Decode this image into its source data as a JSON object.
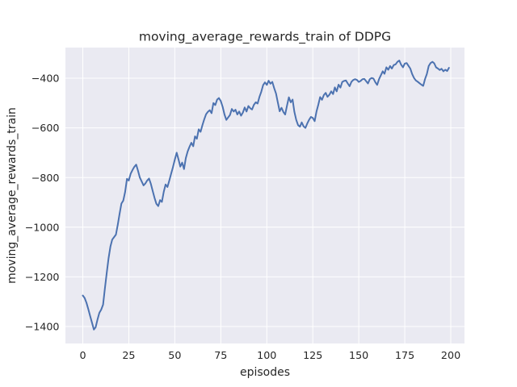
{
  "chart_data": {
    "type": "line",
    "title": "moving_average_rewards_train of DDPG",
    "xlabel": "episodes",
    "ylabel": "moving_average_rewards_train",
    "x_ticks": [
      0,
      25,
      50,
      75,
      100,
      125,
      150,
      175,
      200
    ],
    "y_ticks": [
      -400,
      -600,
      -800,
      -1000,
      -1200,
      -1400
    ],
    "xlim": [
      -9.44,
      207.45
    ],
    "ylim": [
      -1468.3,
      -276.6
    ],
    "grid": true,
    "legend": "none",
    "styles": {
      "figure_bg": "#ffffff",
      "plot_bg": "#eaeaf2",
      "grid_color": "#ffffff",
      "line_color": "#4c72b0",
      "text_color": "#262626",
      "line_width": 2
    },
    "series": [
      {
        "name": "moving_average_rewards_train",
        "x": {
          "type": "index",
          "start": 0,
          "step": 1
        },
        "y": [
          -1275,
          -1285,
          -1305,
          -1330,
          -1358,
          -1385,
          -1412,
          -1403,
          -1372,
          -1345,
          -1332,
          -1312,
          -1248,
          -1185,
          -1125,
          -1078,
          -1050,
          -1040,
          -1030,
          -990,
          -945,
          -905,
          -893,
          -858,
          -805,
          -812,
          -785,
          -770,
          -757,
          -748,
          -772,
          -800,
          -816,
          -832,
          -824,
          -812,
          -804,
          -826,
          -855,
          -882,
          -906,
          -915,
          -891,
          -898,
          -858,
          -828,
          -838,
          -812,
          -785,
          -758,
          -728,
          -700,
          -726,
          -756,
          -740,
          -766,
          -722,
          -695,
          -676,
          -660,
          -674,
          -634,
          -644,
          -606,
          -616,
          -590,
          -566,
          -545,
          -535,
          -529,
          -541,
          -500,
          -508,
          -486,
          -480,
          -492,
          -515,
          -546,
          -568,
          -558,
          -548,
          -524,
          -534,
          -527,
          -546,
          -534,
          -551,
          -538,
          -518,
          -534,
          -512,
          -521,
          -526,
          -507,
          -497,
          -502,
          -475,
          -455,
          -428,
          -417,
          -427,
          -410,
          -422,
          -415,
          -440,
          -462,
          -497,
          -533,
          -519,
          -536,
          -546,
          -510,
          -477,
          -497,
          -486,
          -535,
          -568,
          -589,
          -595,
          -578,
          -594,
          -600,
          -582,
          -567,
          -556,
          -560,
          -573,
          -534,
          -507,
          -476,
          -487,
          -468,
          -459,
          -475,
          -467,
          -453,
          -464,
          -437,
          -453,
          -426,
          -438,
          -415,
          -411,
          -409,
          -421,
          -432,
          -415,
          -407,
          -404,
          -407,
          -415,
          -411,
          -404,
          -403,
          -412,
          -421,
          -404,
          -399,
          -402,
          -416,
          -427,
          -404,
          -388,
          -372,
          -382,
          -356,
          -366,
          -351,
          -361,
          -347,
          -344,
          -334,
          -329,
          -345,
          -356,
          -341,
          -339,
          -350,
          -361,
          -383,
          -399,
          -409,
          -414,
          -420,
          -426,
          -431,
          -404,
          -383,
          -351,
          -339,
          -334,
          -340,
          -356,
          -361,
          -367,
          -362,
          -372,
          -366,
          -371,
          -358
        ]
      }
    ]
  }
}
